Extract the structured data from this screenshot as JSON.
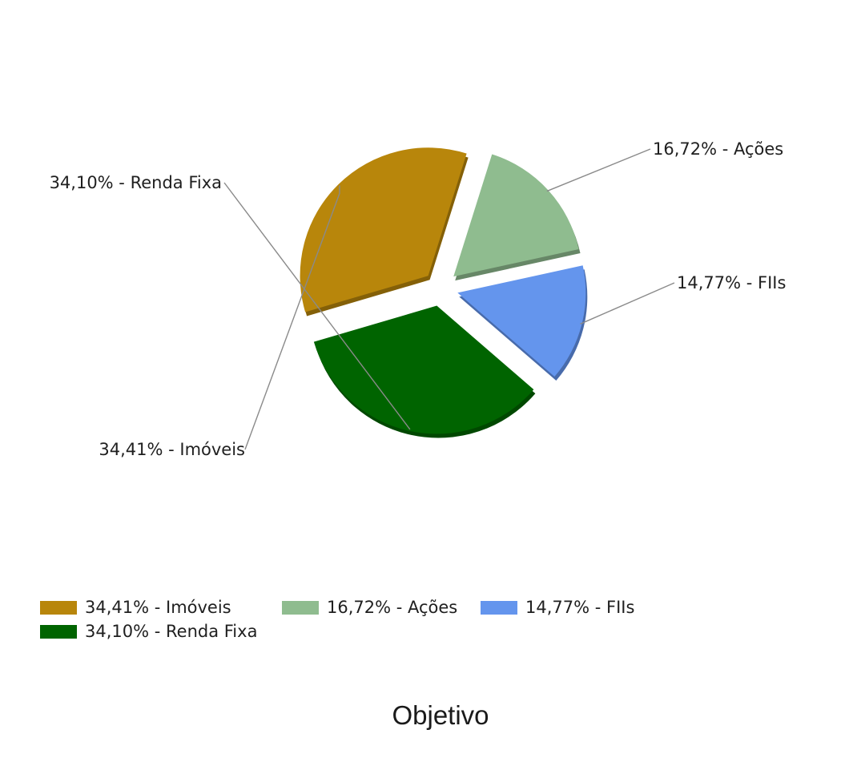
{
  "chart_data": {
    "type": "pie",
    "title": "Objetivo",
    "slices": [
      {
        "label": "34,41% - Imóveis",
        "value": 34.41,
        "color": "#B8860B"
      },
      {
        "label": "16,72% - Ações",
        "value": 16.72,
        "color": "#8FBC8F"
      },
      {
        "label": "14,77% - FIIs",
        "value": 14.77,
        "color": "#6495ED"
      },
      {
        "label": "34,10% - Renda Fixa",
        "value": 34.1,
        "color": "#006400"
      }
    ],
    "legend_position": "bottom-left"
  }
}
